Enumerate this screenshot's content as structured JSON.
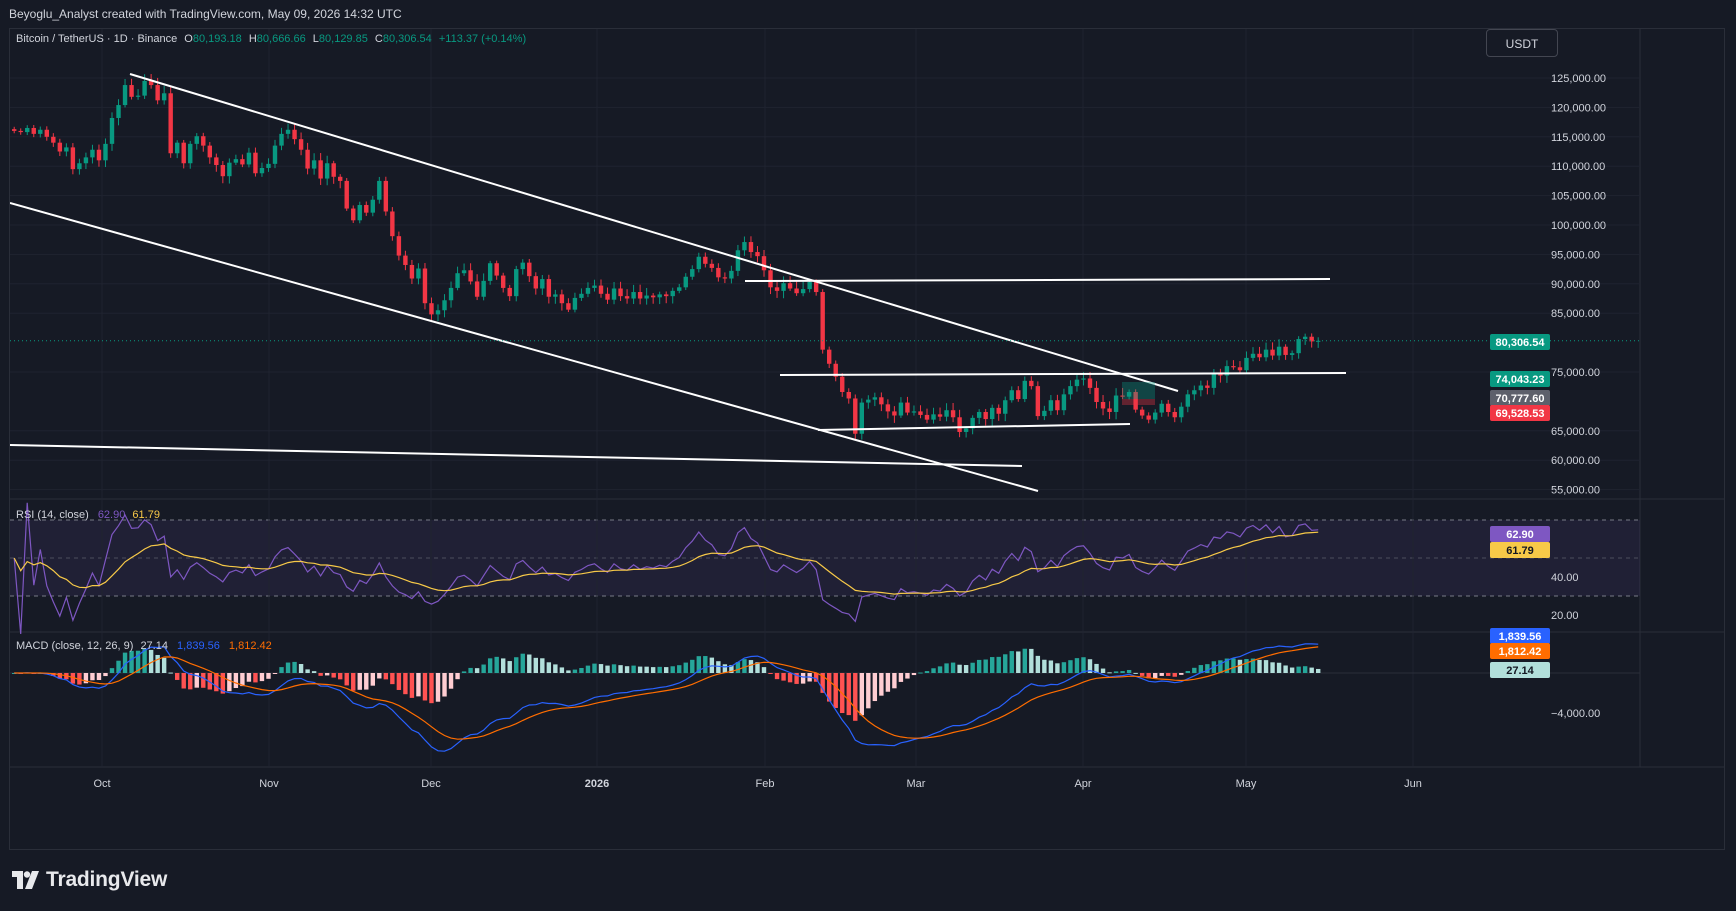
{
  "header": {
    "attribution": "Beyoglu_Analyst created with TradingView.com, May 09, 2026 14:32 UTC"
  },
  "legend": {
    "symbol": "Bitcoin / TetherUS · 1D · Binance",
    "open_label": "O",
    "open": "80,193.18",
    "high_label": "H",
    "high": "80,666.66",
    "low_label": "L",
    "low": "80,129.85",
    "close_label": "C",
    "close": "80,306.54",
    "change": "+113.37 (+0.14%)"
  },
  "currency_button": "USDT",
  "price_axis": {
    "ticks": [
      "125,000.00",
      "120,000.00",
      "115,000.00",
      "110,000.00",
      "105,000.00",
      "100,000.00",
      "95,000.00",
      "90,000.00",
      "85,000.00",
      "75,000.00",
      "65,000.00",
      "60,000.00",
      "55,000.00"
    ],
    "tick_values": [
      125000,
      120000,
      115000,
      110000,
      105000,
      100000,
      95000,
      90000,
      85000,
      75000,
      65000,
      60000,
      55000
    ],
    "badges": [
      {
        "text": "80,306.54",
        "value": 80306.54,
        "color": "#089981"
      },
      {
        "text": "74,043.23",
        "value": 74043.23,
        "color": "#089981"
      },
      {
        "text": "70,777.60",
        "value": 70777.6,
        "color": "#5d606b"
      },
      {
        "text": "69,528.53",
        "value": 69528.53,
        "color": "#f23645"
      }
    ]
  },
  "rsi": {
    "label": "RSI (14, close)",
    "value": "62.90",
    "ma_value": "61.79",
    "ticks": [
      "40.00",
      "20.00"
    ],
    "tick_values": [
      40,
      20
    ],
    "badges": [
      {
        "text": "62.90",
        "color": "#7e57c2"
      },
      {
        "text": "61.79",
        "color": "#f7c948"
      }
    ]
  },
  "macd": {
    "label": "MACD (close, 12, 26, 9)",
    "hist": "27.14",
    "macd": "1,839.56",
    "signal": "1,812.42",
    "ticks": [
      "−4,000.00"
    ],
    "badges": [
      {
        "text": "1,839.56",
        "color": "#2962ff"
      },
      {
        "text": "1,812.42",
        "color": "#ff6d00"
      },
      {
        "text": "27.14",
        "color": "#b2dfdb"
      }
    ]
  },
  "time_axis": [
    "Oct",
    "Nov",
    "Dec",
    "2026",
    "Feb",
    "Mar",
    "Apr",
    "May",
    "Jun"
  ],
  "brand": {
    "name": "TradingView"
  },
  "colors": {
    "up": "#089981",
    "down": "#f23645",
    "rsi": "#7e57c2",
    "rsi_ma": "#f7c948",
    "macd": "#2962ff",
    "signal": "#ff6d00"
  },
  "chart_data": {
    "type": "candlestick",
    "symbol": "BTC/USDT",
    "interval": "1D",
    "ylim": [
      52000,
      128000
    ],
    "candles_close": [
      116000,
      115800,
      116500,
      115500,
      116200,
      115000,
      114000,
      112500,
      113200,
      109500,
      110500,
      111500,
      112800,
      111000,
      113800,
      118200,
      120400,
      123800,
      121800,
      122000,
      124500,
      123800,
      121200,
      122400,
      112200,
      114000,
      110500,
      113800,
      115100,
      113500,
      111500,
      110200,
      108300,
      110600,
      111200,
      110300,
      112300,
      108800,
      109700,
      110400,
      113500,
      115500,
      116200,
      114600,
      112800,
      109600,
      111000,
      107900,
      110500,
      108200,
      107500,
      102800,
      100800,
      103400,
      102100,
      104300,
      107500,
      102300,
      98100,
      94800,
      93200,
      90900,
      92600,
      86700,
      84800,
      85500,
      87200,
      89300,
      91800,
      92300,
      90400,
      87800,
      90500,
      93500,
      91400,
      89300,
      87900,
      92500,
      93600,
      91300,
      89200,
      90800,
      87800,
      88200,
      86700,
      85600,
      87600,
      88300,
      89300,
      89700,
      88300,
      87300,
      89200,
      87900,
      87500,
      88600,
      87500,
      88000,
      87700,
      88200,
      87900,
      88800,
      89400,
      91200,
      92500,
      94600,
      93400,
      92700,
      91100,
      90900,
      92200,
      95700,
      97100,
      95400,
      94700,
      92300,
      89400,
      88800,
      90100,
      89200,
      88400,
      89100,
      90300,
      88600,
      78800,
      76400,
      74200,
      71600,
      70500,
      64500,
      69800,
      70300,
      70700,
      69500,
      68300,
      67600,
      69800,
      68100,
      68300,
      67700,
      66900,
      67800,
      67400,
      68500,
      67300,
      64800,
      65400,
      67200,
      68200,
      67000,
      68900,
      67900,
      70200,
      71900,
      70400,
      73500,
      72600,
      67500,
      68400,
      70200,
      68500,
      71200,
      72600,
      73700,
      73900,
      72300,
      69900,
      68800,
      68200,
      71000,
      70800,
      71600,
      68600,
      67600,
      66900,
      68100,
      69600,
      68200,
      67300,
      69100,
      71200,
      71900,
      72700,
      72300,
      74600,
      74400,
      76000,
      75800,
      75300,
      77400,
      78100,
      77500,
      78800,
      77800,
      79300,
      77900,
      78200,
      80600,
      81000,
      80200,
      80306.54
    ]
  }
}
